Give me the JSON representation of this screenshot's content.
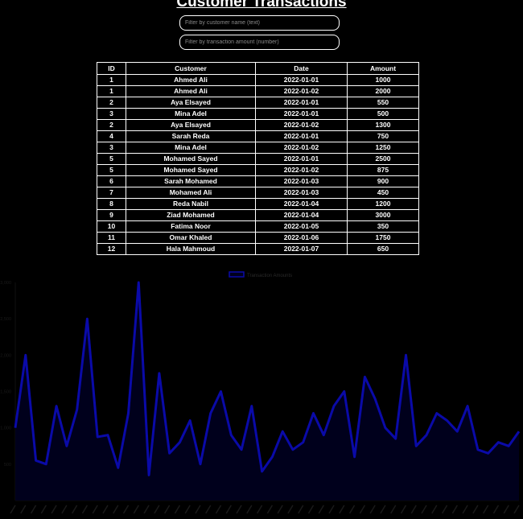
{
  "page": {
    "title": "Customer Transactions",
    "filters": {
      "name_placeholder": "Filter by customer name (text)",
      "amount_placeholder": "Filter by transaction amount (number)"
    }
  },
  "table": {
    "headers": [
      "ID",
      "Customer",
      "Date",
      "Amount"
    ],
    "rows": [
      [
        "1",
        "Ahmed Ali",
        "2022-01-01",
        "1000"
      ],
      [
        "1",
        "Ahmed Ali",
        "2022-01-02",
        "2000"
      ],
      [
        "2",
        "Aya Elsayed",
        "2022-01-01",
        "550"
      ],
      [
        "3",
        "Mina Adel",
        "2022-01-01",
        "500"
      ],
      [
        "2",
        "Aya Elsayed",
        "2022-01-02",
        "1300"
      ],
      [
        "4",
        "Sarah Reda",
        "2022-01-01",
        "750"
      ],
      [
        "3",
        "Mina Adel",
        "2022-01-02",
        "1250"
      ],
      [
        "5",
        "Mohamed Sayed",
        "2022-01-01",
        "2500"
      ],
      [
        "5",
        "Mohamed Sayed",
        "2022-01-02",
        "875"
      ],
      [
        "6",
        "Sarah Mohamed",
        "2022-01-03",
        "900"
      ],
      [
        "7",
        "Mohamed Ali",
        "2022-01-03",
        "450"
      ],
      [
        "8",
        "Reda Nabil",
        "2022-01-04",
        "1200"
      ],
      [
        "9",
        "Ziad Mohamed",
        "2022-01-04",
        "3000"
      ],
      [
        "10",
        "Fatima Noor",
        "2022-01-05",
        "350"
      ],
      [
        "11",
        "Omar Khaled",
        "2022-01-06",
        "1750"
      ],
      [
        "12",
        "Hala Mahmoud",
        "2022-01-07",
        "650"
      ]
    ]
  },
  "chart_data": {
    "type": "area",
    "legend": {
      "label": "Transaction Amounts",
      "position": "top"
    },
    "ylim": [
      0,
      3000
    ],
    "yticks": [
      500,
      1000,
      1500,
      2000,
      2500,
      3000
    ],
    "ytick_labels": [
      "500",
      "1,000",
      "1,500",
      "2,000",
      "2,500",
      "3,000"
    ],
    "values": [
      1000,
      2000,
      550,
      500,
      1300,
      750,
      1250,
      2500,
      875,
      900,
      450,
      1200,
      3000,
      350,
      1750,
      650,
      800,
      1100,
      500,
      1200,
      1500,
      900,
      700,
      1300,
      400,
      600,
      950,
      700,
      800,
      1200,
      900,
      1300,
      1500,
      600,
      1700,
      1400,
      1000,
      850,
      2000,
      750,
      900,
      1200,
      1100,
      950,
      1300,
      700,
      650,
      800,
      750,
      950
    ],
    "line_color": "#0a0aa8",
    "fill_color": "#00001c",
    "grid": false
  }
}
